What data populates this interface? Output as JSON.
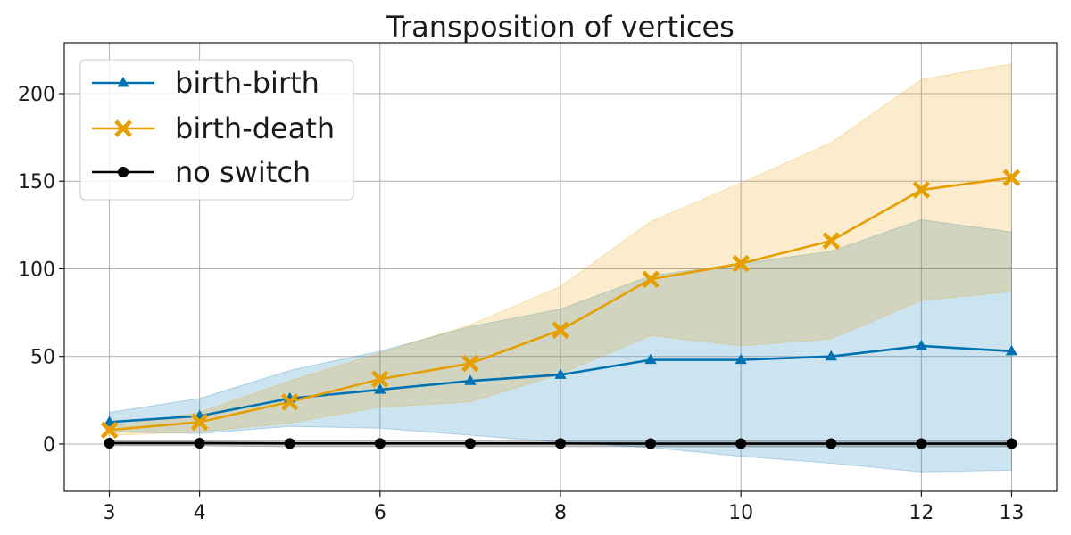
{
  "chart_data": {
    "type": "line",
    "title": "Transposition of vertices",
    "xlabel": "",
    "ylabel": "",
    "xlim": [
      2.5,
      13.5
    ],
    "ylim": [
      -27,
      229
    ],
    "x_ticks": [
      3,
      4,
      6,
      8,
      10,
      12,
      13
    ],
    "y_ticks": [
      0,
      50,
      100,
      150,
      200
    ],
    "grid": true,
    "legend_position": "top-left",
    "series": [
      {
        "name": "birth-birth",
        "color": "#0072b2",
        "marker": "triangle",
        "x": [
          3,
          4,
          5,
          6,
          7,
          8,
          9,
          10,
          11,
          12,
          13
        ],
        "y": [
          12.5,
          16,
          26,
          31,
          36,
          39.5,
          48,
          48,
          50,
          56,
          53
        ],
        "band_upper": [
          18,
          26,
          42,
          53,
          67,
          77,
          96,
          103,
          110,
          128,
          121
        ],
        "band_lower": [
          7,
          6,
          10,
          9,
          5,
          1,
          -2,
          -7,
          -11,
          -16,
          -15
        ]
      },
      {
        "name": "birth-death",
        "color": "#e69f00",
        "marker": "x",
        "x": [
          3,
          4,
          5,
          6,
          7,
          8,
          9,
          10,
          11,
          12,
          13
        ],
        "y": [
          8,
          12.5,
          24,
          37,
          46,
          65,
          94,
          103,
          116,
          145,
          152
        ],
        "band_upper": [
          10,
          18,
          36,
          52,
          68,
          90,
          127,
          149,
          172,
          208,
          217
        ],
        "band_lower": [
          5,
          7,
          12,
          21,
          24,
          40,
          62,
          56,
          60,
          82,
          87
        ]
      },
      {
        "name": "no switch",
        "color": "#000000",
        "marker": "circle",
        "x": [
          3,
          4,
          5,
          6,
          7,
          8,
          9,
          10,
          11,
          12,
          13
        ],
        "y": [
          0.5,
          0.5,
          0.3,
          0.3,
          0.3,
          0.3,
          0.2,
          0.2,
          0.2,
          0.2,
          0.2
        ],
        "band_upper": [
          2,
          2,
          2,
          2,
          2,
          2,
          2,
          2,
          2,
          2,
          2
        ],
        "band_lower": [
          -1,
          -1,
          -1.5,
          -1.5,
          -1.5,
          -1.5,
          -1.5,
          -1.5,
          -1.5,
          -1.5,
          -1.5
        ]
      }
    ]
  }
}
